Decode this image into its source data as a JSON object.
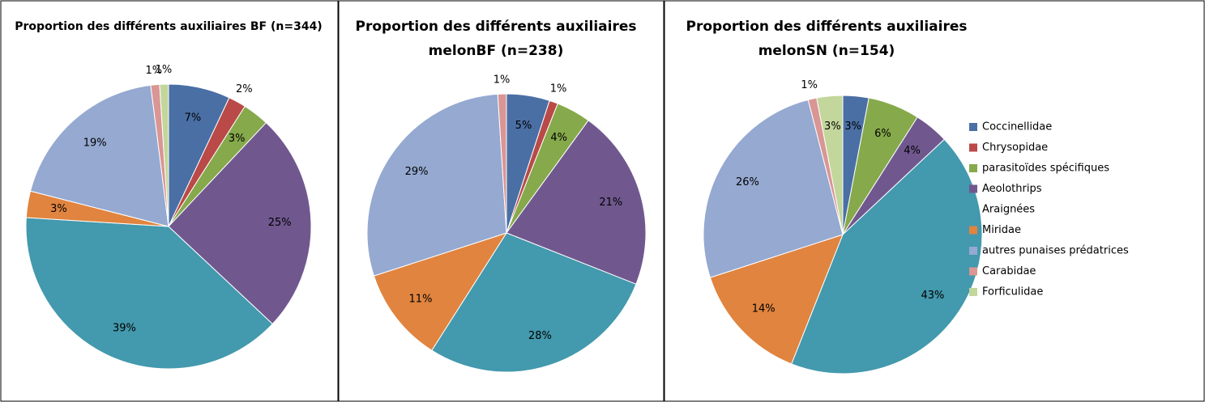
{
  "chart_data": [
    {
      "type": "pie",
      "title": [
        "Proportion des différents auxiliaires BF (n=344)"
      ],
      "values": [
        7,
        2,
        3,
        25,
        39,
        3,
        19,
        1,
        1
      ],
      "value_labels": [
        "7%",
        "2%",
        "3%",
        "25%",
        "39%",
        "3%",
        "19%",
        "1%",
        "1%"
      ],
      "colors": [
        "#4a6fa5",
        "#b94a48",
        "#86a94b",
        "#70588f",
        "#4399ad",
        "#e0843f",
        "#95a9d1",
        "#d99694",
        "#c3d69b"
      ]
    },
    {
      "type": "pie",
      "title": [
        "Proportion des différents auxiliaires",
        "melonBF (n=238)"
      ],
      "values": [
        5,
        1,
        4,
        21,
        28,
        11,
        29,
        1,
        null
      ],
      "value_labels": [
        "5%",
        "1%",
        "4%",
        "21%",
        "28%",
        "11%",
        "29%",
        "1%",
        null
      ],
      "colors": [
        "#4a6fa5",
        "#b94a48",
        "#86a94b",
        "#70588f",
        "#4399ad",
        "#e0843f",
        "#95a9d1",
        "#d99694",
        "#c3d69b"
      ]
    },
    {
      "type": "pie",
      "title": [
        "Proportion des différents auxiliaires",
        "melonSN (n=154)"
      ],
      "categories": [
        "Coccinellidae",
        "Chrysopidae",
        "parasitoïdes spécifiques",
        "Aeolothrips",
        "Araignées",
        "Miridae",
        "autres punaises prédatrices",
        "Carabidae",
        "Forficulidae"
      ],
      "values": [
        3,
        null,
        6,
        4,
        43,
        14,
        26,
        1,
        3
      ],
      "value_labels": [
        "3%",
        null,
        "6%",
        "4%",
        "43%",
        "14%",
        "26%",
        "1%",
        "3%"
      ],
      "colors": [
        "#4a6fa5",
        "#b94a48",
        "#86a94b",
        "#70588f",
        "#4399ad",
        "#e0843f",
        "#95a9d1",
        "#d99694",
        "#c3d69b"
      ],
      "legend": "right"
    }
  ]
}
